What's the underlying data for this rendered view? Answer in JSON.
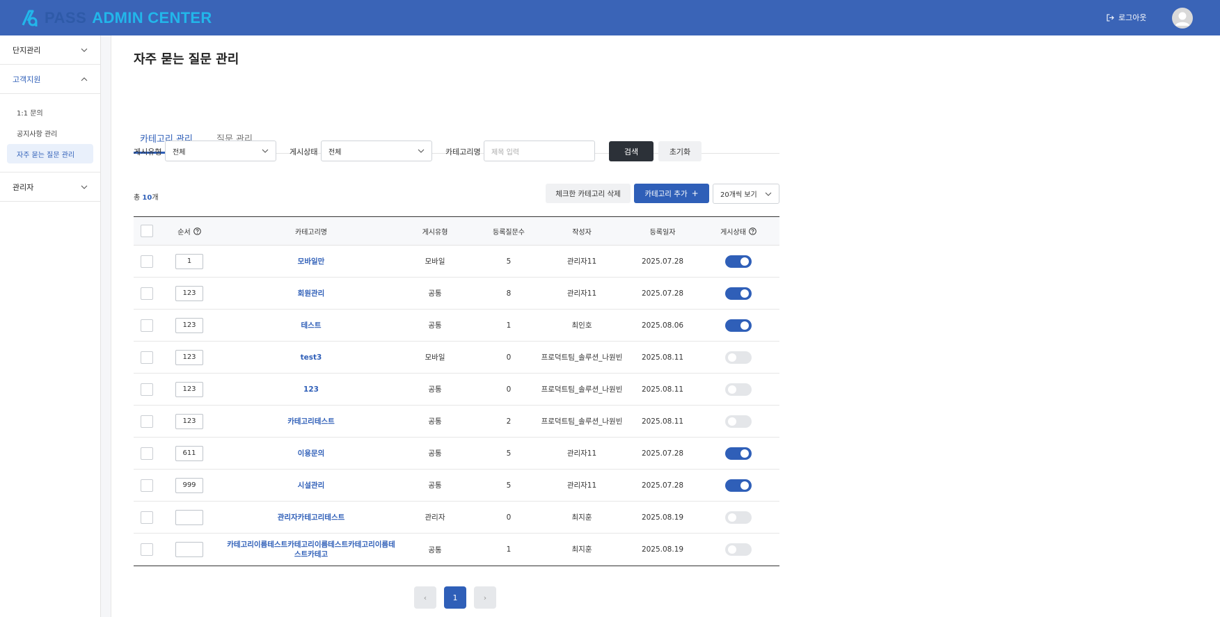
{
  "header": {
    "logo_pass": "PASS",
    "logo_admin": "ADMIN CENTER",
    "logout_label": "로그아웃",
    "bg_color": "#3a64b7"
  },
  "sidebar": {
    "groups": [
      {
        "label": "단지관리",
        "expanded": false
      },
      {
        "label": "고객지원",
        "expanded": true
      },
      {
        "label": "관리자",
        "expanded": false
      }
    ],
    "submenu": [
      "1:1 문의",
      "공지사항 관리",
      "자주 묻는 질문 관리"
    ],
    "selected_item": "자주 묻는 질문 관리"
  },
  "page": {
    "title": "자주 묻는 질문 관리",
    "tabs": [
      "카테고리 관리",
      "질문 관리"
    ],
    "active_tab": "카테고리 관리"
  },
  "filters": {
    "type_label": "게시유형",
    "type_value": "전체",
    "status_label": "게시상태",
    "status_value": "전체",
    "name_label": "카테고리명",
    "name_placeholder": "제목 입력",
    "search_button": "검색",
    "reset_button": "초기화"
  },
  "toolbar": {
    "total_prefix": "총 ",
    "total_count": "10",
    "total_suffix": "개",
    "delete_button": "체크한 카테고리 삭제",
    "add_button": "카테고리 추가",
    "per_page": "20개씩 보기"
  },
  "table": {
    "columns": [
      "순서",
      "카테고리명",
      "게시유형",
      "등록질문수",
      "작성자",
      "등록일자",
      "게시상태"
    ],
    "rows": [
      {
        "order": "1",
        "name": "모바일만",
        "type": "모바일",
        "count": "5",
        "author": "관리자11",
        "date": "2025.07.28",
        "status": true
      },
      {
        "order": "123",
        "name": "회원관리",
        "type": "공통",
        "count": "8",
        "author": "관리자11",
        "date": "2025.07.28",
        "status": true
      },
      {
        "order": "123",
        "name": "테스트",
        "type": "공통",
        "count": "1",
        "author": "최인호",
        "date": "2025.08.06",
        "status": true
      },
      {
        "order": "123",
        "name": "test3",
        "type": "모바일",
        "count": "0",
        "author": "프로덕트팀_솔루션_나원빈",
        "date": "2025.08.11",
        "status": false
      },
      {
        "order": "123",
        "name": "123",
        "type": "공통",
        "count": "0",
        "author": "프로덕트팀_솔루션_나원빈",
        "date": "2025.08.11",
        "status": false
      },
      {
        "order": "123",
        "name": "카테고리테스트",
        "type": "공통",
        "count": "2",
        "author": "프로덕트팀_솔루션_나원빈",
        "date": "2025.08.11",
        "status": false
      },
      {
        "order": "611",
        "name": "이용문의",
        "type": "공통",
        "count": "5",
        "author": "관리자11",
        "date": "2025.07.28",
        "status": true
      },
      {
        "order": "999",
        "name": "시설관리",
        "type": "공통",
        "count": "5",
        "author": "관리자11",
        "date": "2025.07.28",
        "status": true
      },
      {
        "order": "",
        "name": "관리자카테고리테스트",
        "type": "관리자",
        "count": "0",
        "author": "최지훈",
        "date": "2025.08.19",
        "status": false
      },
      {
        "order": "",
        "name": "카테고리이름테스트카테고리이름테스트카테고리이름테스트카테고",
        "type": "공통",
        "count": "1",
        "author": "최지훈",
        "date": "2025.08.19",
        "status": false
      }
    ]
  },
  "pagination": {
    "prev": "‹",
    "current": "1",
    "next": "›"
  },
  "colors": {
    "accent": "#2f5fb8",
    "dark_button": "#2c3138"
  }
}
